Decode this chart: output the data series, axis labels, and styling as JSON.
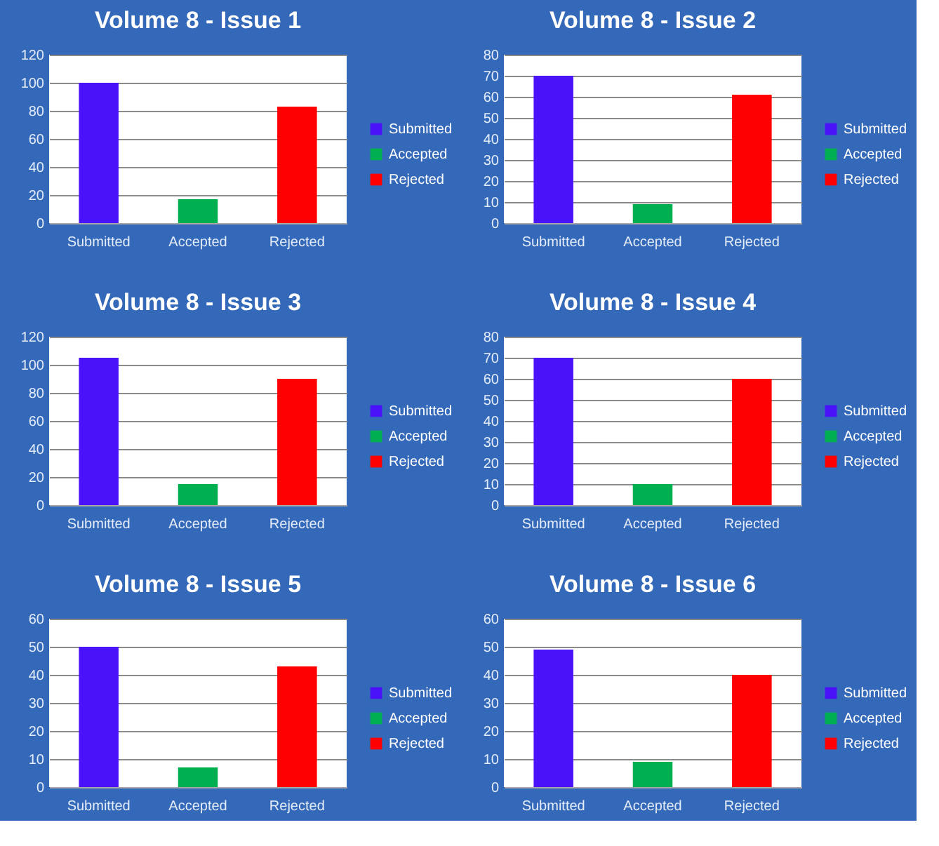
{
  "chart_data": [
    {
      "type": "bar",
      "title": "Volume 8 - Issue 1",
      "categories": [
        "Submitted",
        "Accepted",
        "Rejected"
      ],
      "stacked": true,
      "series": [
        {
          "name": "Submitted",
          "color": "#4a12f8",
          "values": [
            100,
            null,
            null
          ]
        },
        {
          "name": "Accepted",
          "color": "#00b050",
          "values": [
            null,
            17,
            null
          ]
        },
        {
          "name": "Rejected",
          "color": "#ff0000",
          "values": [
            null,
            null,
            83
          ]
        }
      ],
      "ylim": [
        0,
        120
      ],
      "yticks": [
        0,
        20,
        40,
        60,
        80,
        100,
        120
      ],
      "grid": "y",
      "legend": "right"
    },
    {
      "type": "bar",
      "title": "Volume 8 - Issue 2",
      "categories": [
        "Submitted",
        "Accepted",
        "Rejected"
      ],
      "stacked": true,
      "series": [
        {
          "name": "Submitted",
          "color": "#4a12f8",
          "values": [
            70,
            null,
            null
          ]
        },
        {
          "name": "Accepted",
          "color": "#00b050",
          "values": [
            null,
            9,
            null
          ]
        },
        {
          "name": "Rejected",
          "color": "#ff0000",
          "values": [
            null,
            null,
            61
          ]
        }
      ],
      "ylim": [
        0,
        80
      ],
      "yticks": [
        0,
        10,
        20,
        30,
        40,
        50,
        60,
        70,
        80
      ],
      "grid": "y",
      "legend": "right"
    },
    {
      "type": "bar",
      "title": "Volume 8 - Issue 3",
      "categories": [
        "Submitted",
        "Accepted",
        "Rejected"
      ],
      "stacked": true,
      "series": [
        {
          "name": "Submitted",
          "color": "#4a12f8",
          "values": [
            105,
            null,
            null
          ]
        },
        {
          "name": "Accepted",
          "color": "#00b050",
          "values": [
            null,
            15,
            null
          ]
        },
        {
          "name": "Rejected",
          "color": "#ff0000",
          "values": [
            null,
            null,
            90
          ]
        }
      ],
      "ylim": [
        0,
        120
      ],
      "yticks": [
        0,
        20,
        40,
        60,
        80,
        100,
        120
      ],
      "grid": "y",
      "legend": "right"
    },
    {
      "type": "bar",
      "title": "Volume 8 - Issue 4",
      "categories": [
        "Submitted",
        "Accepted",
        "Rejected"
      ],
      "stacked": true,
      "series": [
        {
          "name": "Submitted",
          "color": "#4a12f8",
          "values": [
            70,
            null,
            null
          ]
        },
        {
          "name": "Accepted",
          "color": "#00b050",
          "values": [
            null,
            10,
            null
          ]
        },
        {
          "name": "Rejected",
          "color": "#ff0000",
          "values": [
            null,
            null,
            60
          ]
        }
      ],
      "ylim": [
        0,
        80
      ],
      "yticks": [
        0,
        10,
        20,
        30,
        40,
        50,
        60,
        70,
        80
      ],
      "grid": "y",
      "legend": "right"
    },
    {
      "type": "bar",
      "title": "Volume 8 - Issue 5",
      "categories": [
        "Submitted",
        "Accepted",
        "Rejected"
      ],
      "stacked": true,
      "series": [
        {
          "name": "Submitted",
          "color": "#4a12f8",
          "values": [
            50,
            null,
            null
          ]
        },
        {
          "name": "Accepted",
          "color": "#00b050",
          "values": [
            null,
            7,
            null
          ]
        },
        {
          "name": "Rejected",
          "color": "#ff0000",
          "values": [
            null,
            null,
            43
          ]
        }
      ],
      "ylim": [
        0,
        60
      ],
      "yticks": [
        0,
        10,
        20,
        30,
        40,
        50,
        60
      ],
      "grid": "y",
      "legend": "right"
    },
    {
      "type": "bar",
      "title": "Volume 8 - Issue 6",
      "categories": [
        "Submitted",
        "Accepted",
        "Rejected"
      ],
      "stacked": true,
      "series": [
        {
          "name": "Submitted",
          "color": "#4a12f8",
          "values": [
            49,
            null,
            null
          ]
        },
        {
          "name": "Accepted",
          "color": "#00b050",
          "values": [
            null,
            9,
            null
          ]
        },
        {
          "name": "Rejected",
          "color": "#ff0000",
          "values": [
            null,
            null,
            40
          ]
        }
      ],
      "ylim": [
        0,
        60
      ],
      "yticks": [
        0,
        10,
        20,
        30,
        40,
        50,
        60
      ],
      "grid": "y",
      "legend": "right"
    }
  ]
}
